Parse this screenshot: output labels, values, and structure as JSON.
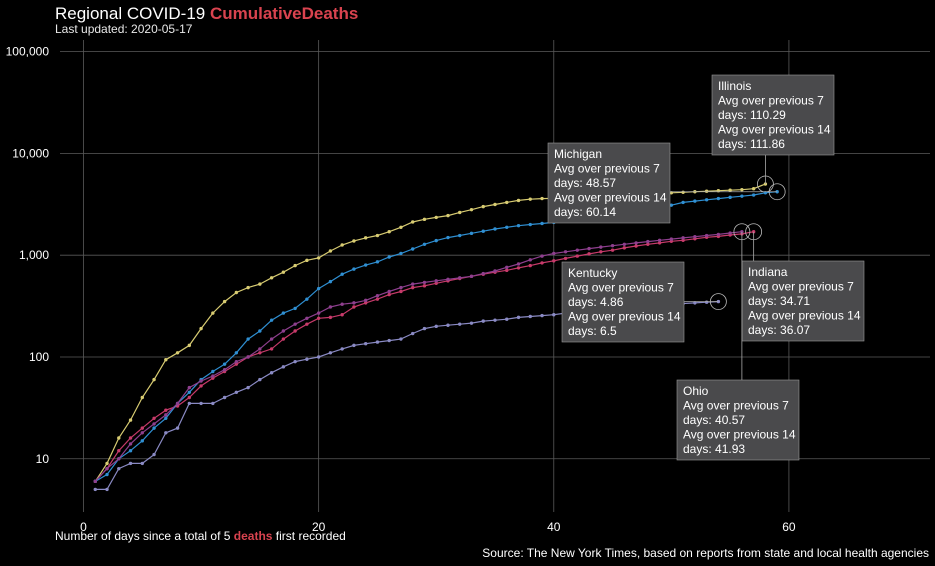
{
  "chart_data": {
    "type": "line",
    "title_prefix": "Regional COVID-19 ",
    "title_metric": "CumulativeDeaths",
    "subtitle": "Last updated: 2020-05-17",
    "xlabel_parts": [
      "Number of days since a total of 5 ",
      "deaths",
      " first recorded"
    ],
    "source": "Source: The New York Times, based on reports from state and local health agencies",
    "x_scale": "linear",
    "y_scale": "log",
    "xlim": [
      -2,
      72
    ],
    "ylim": [
      3,
      130000
    ],
    "x_ticks": [
      0,
      20,
      40,
      60
    ],
    "x_tick_labels": [
      "0",
      "20",
      "40",
      "60"
    ],
    "y_ticks": [
      10,
      100,
      1000,
      10000,
      100000
    ],
    "y_tick_labels": [
      "10",
      "100",
      "1,000",
      "10,000",
      "100,000"
    ],
    "grid": true,
    "legend": "none",
    "series": [
      {
        "name": "Illinois",
        "color": "#d8cc72",
        "x": [
          1,
          2,
          3,
          4,
          5,
          6,
          7,
          8,
          9,
          10,
          11,
          12,
          13,
          14,
          15,
          16,
          17,
          18,
          19,
          20,
          21,
          22,
          23,
          24,
          25,
          26,
          27,
          28,
          29,
          30,
          31,
          32,
          33,
          34,
          35,
          36,
          37,
          38,
          39,
          40,
          41,
          42,
          43,
          44,
          45,
          46,
          47,
          48,
          49,
          50,
          51,
          52,
          53,
          54,
          55,
          56,
          57,
          58
        ],
        "y": [
          6,
          9,
          16,
          24,
          40,
          60,
          94,
          110,
          130,
          190,
          270,
          350,
          430,
          480,
          520,
          600,
          680,
          790,
          890,
          940,
          1100,
          1260,
          1380,
          1480,
          1560,
          1700,
          1880,
          2120,
          2250,
          2350,
          2450,
          2630,
          2800,
          3000,
          3150,
          3300,
          3450,
          3550,
          3600,
          3620,
          3650,
          3700,
          3750,
          3800,
          3850,
          3900,
          3950,
          4000,
          4050,
          4100,
          4150,
          4200,
          4250,
          4300,
          4350,
          4400,
          4500,
          5000
        ]
      },
      {
        "name": "Indiana",
        "color": "#c73a6a",
        "x": [
          1,
          2,
          3,
          4,
          5,
          6,
          7,
          8,
          9,
          10,
          11,
          12,
          13,
          14,
          15,
          16,
          17,
          18,
          19,
          20,
          21,
          22,
          23,
          24,
          25,
          26,
          27,
          28,
          29,
          30,
          31,
          32,
          33,
          34,
          35,
          36,
          37,
          38,
          39,
          40,
          41,
          42,
          43,
          44,
          45,
          46,
          47,
          48,
          49,
          50,
          51,
          52,
          53,
          54,
          55,
          56,
          57
        ],
        "y": [
          6,
          8,
          12,
          16,
          20,
          25,
          30,
          33,
          40,
          52,
          62,
          72,
          85,
          100,
          110,
          120,
          150,
          180,
          210,
          240,
          245,
          260,
          310,
          340,
          370,
          410,
          440,
          480,
          500,
          530,
          560,
          590,
          620,
          650,
          680,
          710,
          750,
          790,
          840,
          880,
          930,
          980,
          1030,
          1080,
          1120,
          1180,
          1230,
          1280,
          1320,
          1370,
          1400,
          1450,
          1500,
          1530,
          1580,
          1620,
          1700
        ]
      },
      {
        "name": "Kentucky",
        "color": "#8a8ac4",
        "x": [
          1,
          2,
          3,
          4,
          5,
          6,
          7,
          8,
          9,
          10,
          11,
          12,
          13,
          14,
          15,
          16,
          17,
          18,
          19,
          20,
          21,
          22,
          23,
          24,
          25,
          26,
          27,
          28,
          29,
          30,
          31,
          32,
          33,
          34,
          35,
          36,
          37,
          38,
          39,
          40,
          41,
          42,
          43,
          44,
          45,
          46,
          47,
          48,
          49,
          50,
          51,
          52,
          53,
          54
        ],
        "y": [
          5,
          5,
          8,
          9,
          9,
          11,
          18,
          20,
          35,
          35,
          35,
          40,
          45,
          50,
          60,
          70,
          80,
          90,
          95,
          100,
          110,
          120,
          130,
          135,
          140,
          145,
          150,
          170,
          190,
          200,
          205,
          210,
          215,
          225,
          230,
          235,
          245,
          250,
          255,
          260,
          270,
          280,
          290,
          300,
          305,
          310,
          315,
          320,
          325,
          330,
          335,
          340,
          345,
          350
        ]
      },
      {
        "name": "Michigan",
        "color": "#2f8fd2",
        "x": [
          1,
          2,
          3,
          4,
          5,
          6,
          7,
          8,
          9,
          10,
          11,
          12,
          13,
          14,
          15,
          16,
          17,
          18,
          19,
          20,
          21,
          22,
          23,
          24,
          25,
          26,
          27,
          28,
          29,
          30,
          31,
          32,
          33,
          34,
          35,
          36,
          37,
          38,
          39,
          40,
          41,
          42,
          43,
          44,
          45,
          46,
          47,
          48,
          49,
          50,
          51,
          52,
          53,
          54,
          55,
          56,
          57,
          58,
          59
        ],
        "y": [
          6,
          7,
          10,
          12,
          15,
          20,
          25,
          35,
          45,
          60,
          72,
          85,
          110,
          150,
          180,
          230,
          270,
          300,
          370,
          470,
          550,
          650,
          730,
          800,
          860,
          960,
          1040,
          1150,
          1280,
          1390,
          1490,
          1560,
          1640,
          1720,
          1810,
          1880,
          1950,
          2000,
          2050,
          2100,
          2150,
          2200,
          2250,
          2300,
          2350,
          2400,
          2450,
          2500,
          2900,
          3100,
          3300,
          3400,
          3500,
          3600,
          3700,
          3800,
          3900,
          4100,
          4200
        ]
      },
      {
        "name": "Ohio",
        "color": "#8e3f8e",
        "x": [
          1,
          2,
          3,
          4,
          5,
          6,
          7,
          8,
          9,
          10,
          11,
          12,
          13,
          14,
          15,
          16,
          17,
          18,
          19,
          20,
          21,
          22,
          23,
          24,
          25,
          26,
          27,
          28,
          29,
          30,
          31,
          32,
          33,
          34,
          35,
          36,
          37,
          38,
          39,
          40,
          41,
          42,
          43,
          44,
          45,
          46,
          47,
          48,
          49,
          50,
          51,
          52,
          53,
          54,
          55,
          56
        ],
        "y": [
          6,
          8,
          10,
          14,
          18,
          22,
          27,
          35,
          50,
          58,
          65,
          75,
          90,
          100,
          120,
          150,
          180,
          210,
          240,
          270,
          310,
          330,
          340,
          360,
          400,
          440,
          480,
          520,
          540,
          560,
          580,
          600,
          620,
          660,
          700,
          760,
          820,
          900,
          980,
          1040,
          1080,
          1120,
          1160,
          1200,
          1240,
          1280,
          1320,
          1360,
          1400,
          1440,
          1480,
          1520,
          1560,
          1600,
          1650,
          1700
        ]
      }
    ],
    "annotations": [
      {
        "state": "Illinois",
        "lines": [
          "Illinois",
          "Avg over previous 7",
          "days: 110.29",
          "Avg over previous 14",
          "days: 111.86"
        ]
      },
      {
        "state": "Michigan",
        "lines": [
          "Michigan",
          "Avg over previous 7",
          "days: 48.57",
          "Avg over previous 14",
          "days: 60.14"
        ]
      },
      {
        "state": "Kentucky",
        "lines": [
          "Kentucky",
          "Avg over previous 7",
          "days: 4.86",
          "Avg over previous 14",
          "days: 6.5"
        ]
      },
      {
        "state": "Indiana",
        "lines": [
          "Indiana",
          "Avg over previous 7",
          "days: 34.71",
          "Avg over previous 14",
          "days: 36.07"
        ]
      },
      {
        "state": "Ohio",
        "lines": [
          "Ohio",
          "Avg over previous 7",
          "days: 40.57",
          "Avg over previous 14",
          "days: 41.93"
        ]
      }
    ]
  }
}
